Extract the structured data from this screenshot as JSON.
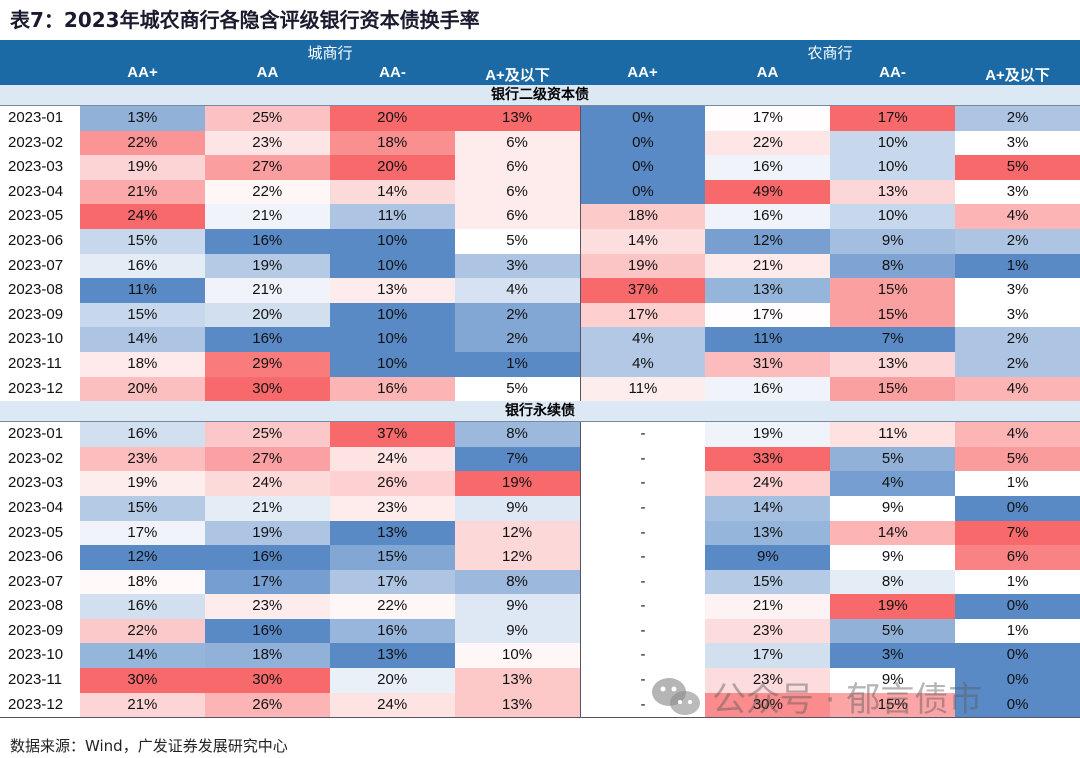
{
  "title": "表7：2023年城农商行各隐含评级银行资本债换手率",
  "source": "数据来源：Wind，广发证券发展研究中心",
  "watermark": "公众号 · 郁言债市",
  "colors": {
    "header": "#1b6aa5",
    "section": "#dce9f5",
    "high": "#f8696b",
    "low": "#5a8ac6",
    "mid": "#ffffff"
  },
  "chart_data": {
    "type": "heatmap",
    "groups": [
      {
        "name": "城商行",
        "columns": [
          "AA+",
          "AA",
          "AA-",
          "A+及以下"
        ]
      },
      {
        "name": "农商行",
        "columns": [
          "AA+",
          "AA",
          "AA-",
          "A+及以下"
        ]
      }
    ],
    "sections": [
      {
        "name": "银行二级资本债",
        "rows": [
          {
            "month": "2023-01",
            "values": [
              "13%",
              "25%",
              "20%",
              "13%",
              "0%",
              "17%",
              "17%",
              "2%"
            ]
          },
          {
            "month": "2023-02",
            "values": [
              "22%",
              "23%",
              "18%",
              "6%",
              "0%",
              "22%",
              "10%",
              "3%"
            ]
          },
          {
            "month": "2023-03",
            "values": [
              "19%",
              "27%",
              "20%",
              "6%",
              "0%",
              "16%",
              "10%",
              "5%"
            ]
          },
          {
            "month": "2023-04",
            "values": [
              "21%",
              "22%",
              "14%",
              "6%",
              "0%",
              "49%",
              "13%",
              "3%"
            ]
          },
          {
            "month": "2023-05",
            "values": [
              "24%",
              "21%",
              "11%",
              "6%",
              "18%",
              "16%",
              "10%",
              "4%"
            ]
          },
          {
            "month": "2023-06",
            "values": [
              "15%",
              "16%",
              "10%",
              "5%",
              "14%",
              "12%",
              "9%",
              "2%"
            ]
          },
          {
            "month": "2023-07",
            "values": [
              "16%",
              "19%",
              "10%",
              "3%",
              "19%",
              "21%",
              "8%",
              "1%"
            ]
          },
          {
            "month": "2023-08",
            "values": [
              "11%",
              "21%",
              "13%",
              "4%",
              "37%",
              "13%",
              "15%",
              "3%"
            ]
          },
          {
            "month": "2023-09",
            "values": [
              "15%",
              "20%",
              "10%",
              "2%",
              "17%",
              "17%",
              "15%",
              "3%"
            ]
          },
          {
            "month": "2023-10",
            "values": [
              "14%",
              "16%",
              "10%",
              "2%",
              "4%",
              "11%",
              "7%",
              "2%"
            ]
          },
          {
            "month": "2023-11",
            "values": [
              "18%",
              "29%",
              "10%",
              "1%",
              "4%",
              "31%",
              "13%",
              "2%"
            ]
          },
          {
            "month": "2023-12",
            "values": [
              "20%",
              "30%",
              "16%",
              "5%",
              "11%",
              "16%",
              "15%",
              "4%"
            ]
          }
        ]
      },
      {
        "name": "银行永续债",
        "rows": [
          {
            "month": "2023-01",
            "values": [
              "16%",
              "25%",
              "37%",
              "8%",
              "-",
              "19%",
              "11%",
              "4%"
            ]
          },
          {
            "month": "2023-02",
            "values": [
              "23%",
              "27%",
              "24%",
              "7%",
              "-",
              "33%",
              "5%",
              "5%"
            ]
          },
          {
            "month": "2023-03",
            "values": [
              "19%",
              "24%",
              "26%",
              "19%",
              "-",
              "24%",
              "4%",
              "1%"
            ]
          },
          {
            "month": "2023-04",
            "values": [
              "15%",
              "21%",
              "23%",
              "9%",
              "-",
              "14%",
              "9%",
              "0%"
            ]
          },
          {
            "month": "2023-05",
            "values": [
              "17%",
              "19%",
              "13%",
              "12%",
              "-",
              "13%",
              "14%",
              "7%"
            ]
          },
          {
            "month": "2023-06",
            "values": [
              "12%",
              "16%",
              "15%",
              "12%",
              "-",
              "9%",
              "9%",
              "6%"
            ]
          },
          {
            "month": "2023-07",
            "values": [
              "18%",
              "17%",
              "17%",
              "8%",
              "-",
              "15%",
              "8%",
              "1%"
            ]
          },
          {
            "month": "2023-08",
            "values": [
              "16%",
              "23%",
              "22%",
              "9%",
              "-",
              "21%",
              "19%",
              "0%"
            ]
          },
          {
            "month": "2023-09",
            "values": [
              "22%",
              "16%",
              "16%",
              "9%",
              "-",
              "23%",
              "5%",
              "1%"
            ]
          },
          {
            "month": "2023-10",
            "values": [
              "14%",
              "18%",
              "13%",
              "10%",
              "-",
              "17%",
              "3%",
              "0%"
            ]
          },
          {
            "month": "2023-11",
            "values": [
              "30%",
              "30%",
              "20%",
              "13%",
              "-",
              "23%",
              "9%",
              "0%"
            ]
          },
          {
            "month": "2023-12",
            "values": [
              "21%",
              "26%",
              "24%",
              "13%",
              "-",
              "30%",
              "15%",
              "0%"
            ]
          }
        ]
      }
    ]
  }
}
